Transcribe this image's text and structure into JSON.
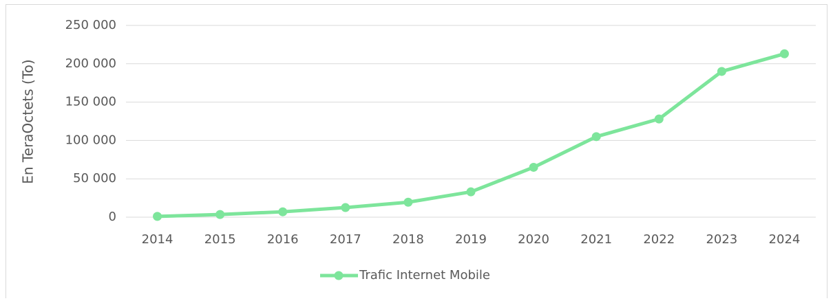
{
  "chart_data": {
    "type": "line",
    "y_label": "En TeraOctets (To)",
    "categories": [
      "2014",
      "2015",
      "2016",
      "2017",
      "2018",
      "2019",
      "2020",
      "2021",
      "2022",
      "2023",
      "2024"
    ],
    "series": [
      {
        "name": "Trafic Internet Mobile",
        "color": "#7de59b",
        "values": [
          1000,
          3500,
          7000,
          12500,
          19500,
          33000,
          65000,
          105000,
          128000,
          190000,
          213000
        ]
      }
    ],
    "ylim": [
      0,
      250000
    ],
    "yticks": [
      {
        "value": 0,
        "label": "0"
      },
      {
        "value": 50000,
        "label": "50 000"
      },
      {
        "value": 100000,
        "label": "100 000"
      },
      {
        "value": 150000,
        "label": "150 000"
      },
      {
        "value": 200000,
        "label": "200 000"
      },
      {
        "value": 250000,
        "label": "250 000"
      }
    ],
    "grid": true,
    "legend": "bottom"
  }
}
